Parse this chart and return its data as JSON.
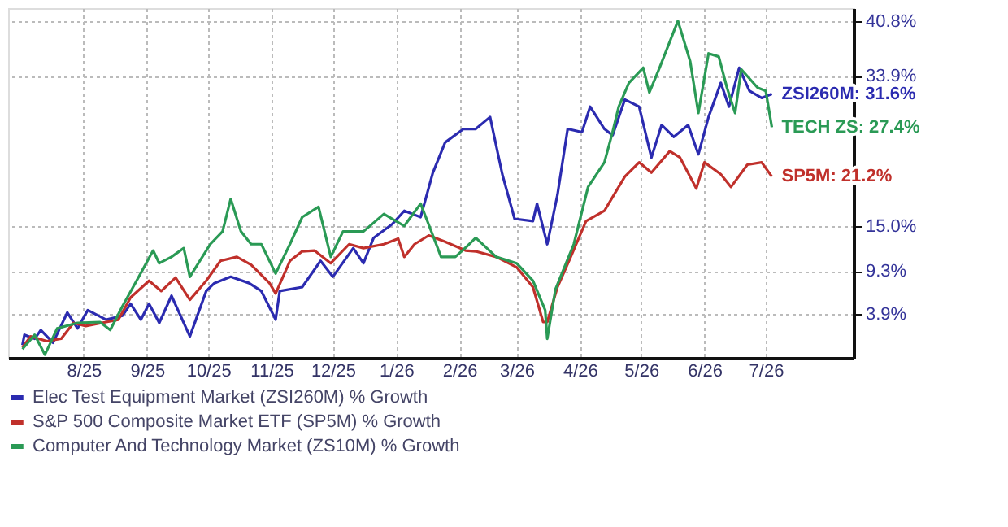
{
  "chart_data": {
    "type": "line",
    "series": [
      {
        "name": "Elec Test Equipment Market (ZSI260M) % Growth",
        "color": "#2b2bb0",
        "x": [
          "2025-07-02",
          "2025-07-03",
          "2025-07-08",
          "2025-07-11",
          "2025-07-17",
          "2025-07-24",
          "2025-07-29",
          "2025-08-03",
          "2025-08-12",
          "2025-08-20",
          "2025-08-24",
          "2025-08-29",
          "2025-09-02",
          "2025-09-07",
          "2025-09-13",
          "2025-09-22",
          "2025-09-30",
          "2025-10-04",
          "2025-10-12",
          "2025-10-21",
          "2025-10-27",
          "2025-11-03",
          "2025-11-05",
          "2025-11-16",
          "2025-11-25",
          "2025-12-01",
          "2025-12-11",
          "2025-12-16",
          "2025-12-21",
          "2025-12-30",
          "2026-01-05",
          "2026-01-13",
          "2026-01-19",
          "2026-01-25",
          "2026-02-03",
          "2026-02-09",
          "2026-02-16",
          "2026-02-22",
          "2026-02-28",
          "2026-03-09",
          "2026-03-11",
          "2026-03-16",
          "2026-03-21",
          "2026-03-26",
          "2026-04-02",
          "2026-04-06",
          "2026-04-13",
          "2026-04-17",
          "2026-04-23",
          "2026-04-30",
          "2026-05-06",
          "2026-05-11",
          "2026-05-17",
          "2026-05-24",
          "2026-05-29",
          "2026-06-03",
          "2026-06-09",
          "2026-06-13",
          "2026-06-18",
          "2026-06-23",
          "2026-06-29",
          "2026-07-04"
        ],
        "values": [
          0.0,
          1.3,
          0.8,
          1.9,
          0.3,
          4.1,
          2.1,
          4.4,
          3.2,
          3.7,
          5.2,
          3.2,
          5.2,
          2.8,
          6.2,
          1.1,
          6.8,
          7.8,
          8.6,
          7.8,
          6.8,
          3.2,
          6.8,
          7.3,
          10.6,
          8.6,
          12.2,
          10.3,
          13.5,
          15.2,
          16.9,
          16.1,
          21.7,
          25.5,
          27.2,
          27.2,
          28.7,
          21.5,
          15.9,
          15.6,
          17.8,
          12.7,
          18.9,
          27.2,
          26.8,
          30.0,
          27.2,
          26.4,
          30.9,
          30.0,
          23.6,
          27.7,
          26.2,
          27.7,
          24.0,
          28.7,
          33.0,
          30.0,
          34.9,
          32.0,
          31.1,
          31.6
        ]
      },
      {
        "name": "S&P 500 Composite Market ETF (SP5M) % Growth",
        "color": "#c0302b",
        "x": [
          "2025-07-02",
          "2025-07-06",
          "2025-07-14",
          "2025-07-21",
          "2025-07-27",
          "2025-08-02",
          "2025-08-12",
          "2025-08-18",
          "2025-08-24",
          "2025-09-02",
          "2025-09-08",
          "2025-09-15",
          "2025-09-22",
          "2025-09-30",
          "2025-10-07",
          "2025-10-15",
          "2025-10-22",
          "2025-10-31",
          "2025-11-03",
          "2025-11-10",
          "2025-11-16",
          "2025-11-22",
          "2025-11-30",
          "2025-12-09",
          "2025-12-16",
          "2025-12-26",
          "2026-01-02",
          "2026-01-05",
          "2026-01-10",
          "2026-01-17",
          "2026-01-25",
          "2026-02-04",
          "2026-02-09",
          "2026-02-19",
          "2026-03-01",
          "2026-03-09",
          "2026-03-14",
          "2026-03-16",
          "2026-03-21",
          "2026-03-27",
          "2026-04-04",
          "2026-04-13",
          "2026-04-23",
          "2026-04-30",
          "2026-05-06",
          "2026-05-15",
          "2026-05-20",
          "2026-05-28",
          "2026-06-01",
          "2026-06-09",
          "2026-06-14",
          "2026-06-22",
          "2026-06-29",
          "2026-07-04"
        ],
        "values": [
          -0.3,
          1.1,
          0.5,
          0.8,
          2.8,
          2.4,
          2.9,
          3.2,
          6.0,
          8.1,
          6.8,
          8.5,
          5.7,
          8.1,
          10.6,
          11.1,
          10.1,
          7.8,
          6.5,
          10.6,
          11.8,
          11.9,
          10.3,
          12.7,
          12.2,
          12.7,
          13.4,
          11.1,
          12.7,
          13.8,
          13.0,
          11.9,
          11.8,
          11.1,
          9.8,
          7.3,
          2.9,
          2.9,
          7.3,
          10.8,
          15.6,
          16.9,
          21.2,
          23.0,
          21.7,
          24.4,
          23.6,
          19.7,
          23.0,
          21.5,
          19.9,
          22.7,
          23.0,
          21.2
        ]
      },
      {
        "name": "Computer And Technology Market (ZS10M) % Growth",
        "color": "#2a9a55",
        "x": [
          "2025-07-02",
          "2025-07-08",
          "2025-07-13",
          "2025-07-19",
          "2025-07-29",
          "2025-08-09",
          "2025-08-14",
          "2025-08-20",
          "2025-08-28",
          "2025-09-04",
          "2025-09-07",
          "2025-09-13",
          "2025-09-19",
          "2025-09-22",
          "2025-10-02",
          "2025-10-08",
          "2025-10-12",
          "2025-10-17",
          "2025-10-22",
          "2025-10-27",
          "2025-11-03",
          "2025-11-10",
          "2025-11-16",
          "2025-11-24",
          "2025-11-30",
          "2025-12-06",
          "2025-12-16",
          "2025-12-26",
          "2026-01-05",
          "2026-01-13",
          "2026-01-19",
          "2026-01-23",
          "2026-01-30",
          "2026-02-05",
          "2026-02-09",
          "2026-02-19",
          "2026-03-01",
          "2026-03-09",
          "2026-03-15",
          "2026-03-16",
          "2026-03-20",
          "2026-03-29",
          "2026-04-05",
          "2026-04-13",
          "2026-04-17",
          "2026-04-20",
          "2026-04-25",
          "2026-05-02",
          "2026-05-05",
          "2026-05-10",
          "2026-05-19",
          "2026-05-25",
          "2026-05-29",
          "2026-06-03",
          "2026-06-08",
          "2026-06-12",
          "2026-06-16",
          "2026-06-19",
          "2026-06-27",
          "2026-07-01",
          "2026-07-04"
        ],
        "values": [
          -0.5,
          1.3,
          -1.2,
          2.1,
          2.8,
          2.9,
          1.9,
          4.9,
          8.6,
          11.9,
          10.3,
          11.1,
          12.2,
          8.6,
          12.7,
          14.3,
          18.4,
          14.3,
          12.7,
          12.7,
          9.0,
          12.7,
          16.1,
          17.4,
          11.1,
          14.3,
          14.3,
          16.5,
          15.0,
          17.8,
          13.8,
          11.1,
          11.1,
          12.5,
          13.5,
          11.1,
          10.3,
          8.1,
          4.4,
          0.8,
          7.0,
          12.7,
          19.9,
          23.0,
          26.8,
          30.0,
          33.0,
          34.9,
          31.8,
          34.9,
          40.8,
          35.7,
          29.2,
          36.7,
          36.3,
          32.4,
          29.2,
          34.7,
          32.4,
          32.0,
          27.4
        ]
      }
    ],
    "xlim": [
      "2025-06-25",
      "2026-08-13"
    ],
    "xticks": [
      {
        "value": "2025-08-01",
        "label": "8/25"
      },
      {
        "value": "2025-09-01",
        "label": "9/25"
      },
      {
        "value": "2025-10-01",
        "label": "10/25"
      },
      {
        "value": "2025-11-01",
        "label": "11/25"
      },
      {
        "value": "2025-12-01",
        "label": "12/25"
      },
      {
        "value": "2026-01-01",
        "label": "1/26"
      },
      {
        "value": "2026-02-01",
        "label": "2/26"
      },
      {
        "value": "2026-03-01",
        "label": "3/26"
      },
      {
        "value": "2026-04-01",
        "label": "4/26"
      },
      {
        "value": "2026-05-01",
        "label": "5/26"
      },
      {
        "value": "2026-06-01",
        "label": "6/26"
      },
      {
        "value": "2026-07-01",
        "label": "7/26"
      }
    ],
    "ylim": [
      -1.6,
      42.4
    ],
    "yticks": [
      {
        "value": 3.9,
        "label": "3.9%"
      },
      {
        "value": 9.3,
        "label": "9.3%"
      },
      {
        "value": 15.0,
        "label": "15.0%"
      },
      {
        "value": 33.9,
        "label": "33.9%"
      },
      {
        "value": 40.8,
        "label": "40.8%"
      }
    ],
    "annotations": [
      {
        "text": "ZSI260M: 31.6%",
        "x": "2026-07-04",
        "y": 31.6
      },
      {
        "text": "SP5M: 21.2%",
        "x": "2026-07-04",
        "y": 21.2
      },
      {
        "text": "TECH ZS: 27.4%",
        "x": "2026-07-04",
        "y": 27.4
      }
    ],
    "grid": true,
    "legend": "bottom",
    "line_style": "solid",
    "marker": "none"
  }
}
